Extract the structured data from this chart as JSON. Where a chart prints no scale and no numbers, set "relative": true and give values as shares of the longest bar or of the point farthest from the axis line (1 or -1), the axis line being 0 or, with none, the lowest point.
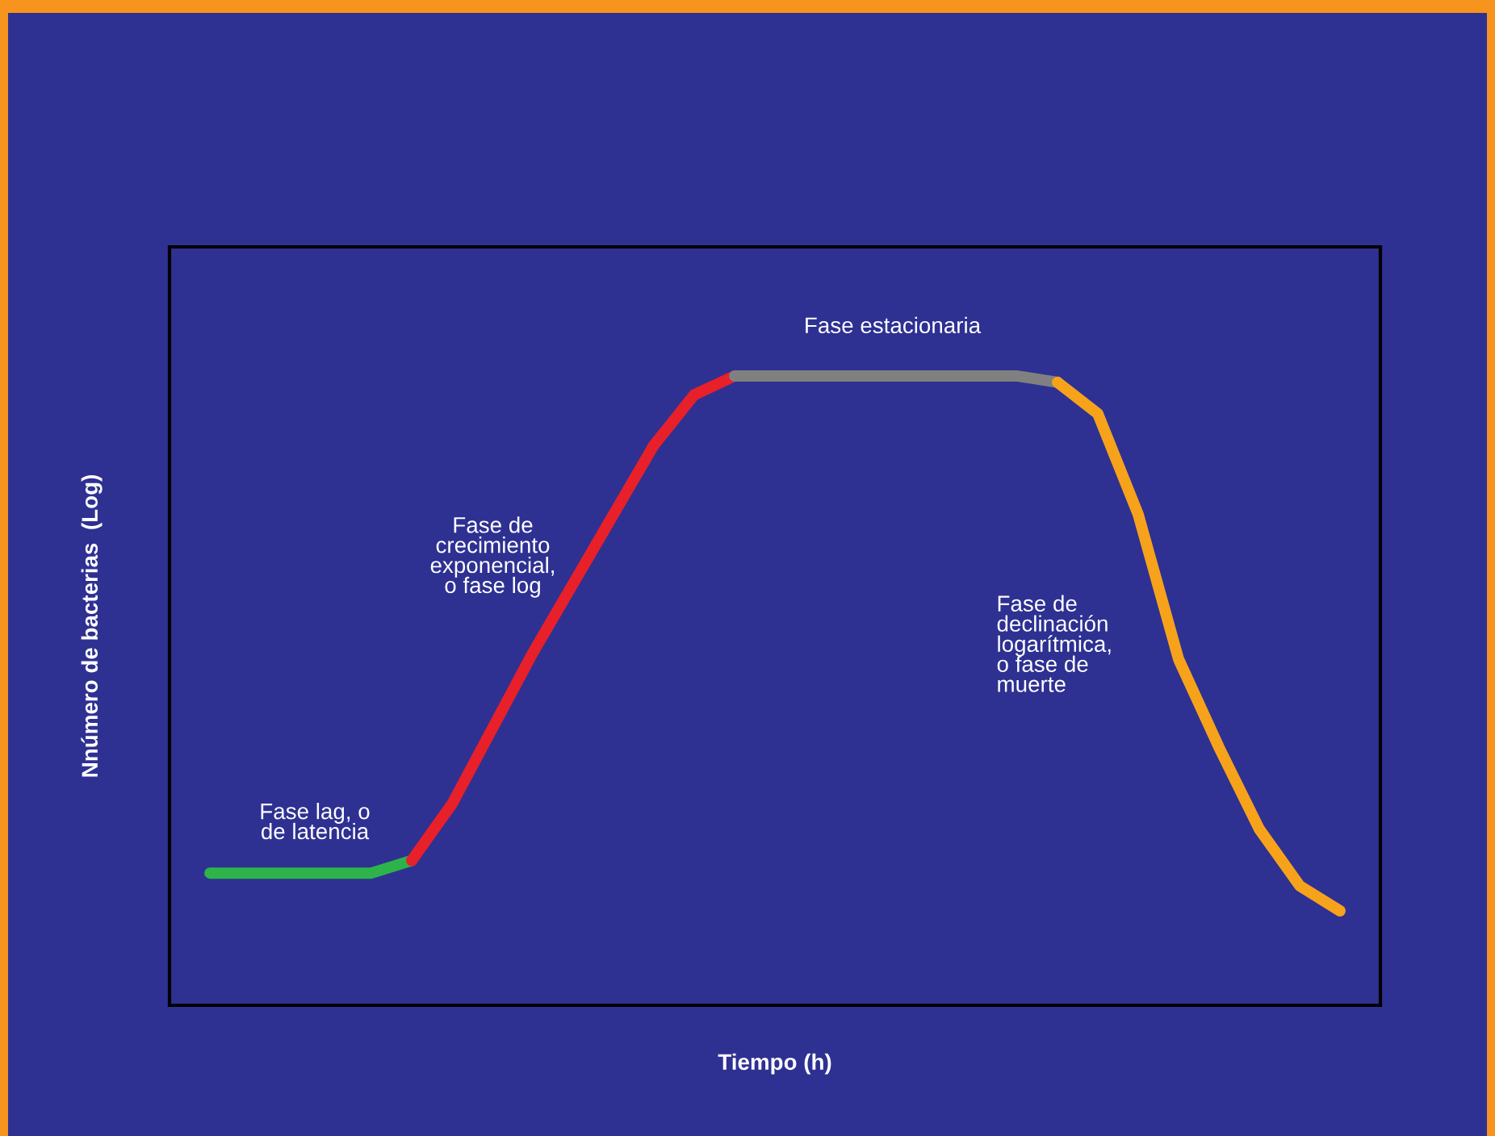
{
  "chart_data": {
    "type": "line",
    "relative": true,
    "xlabel": "Tiempo (h)",
    "ylabel": "Nnúmero de bacterias  (Log)",
    "legend": false,
    "grid": false,
    "marker": "none",
    "line_style": "solid",
    "categories": [
      null,
      null,
      null,
      null,
      null,
      null,
      null,
      null,
      null,
      null,
      null,
      null,
      null,
      null,
      null,
      null,
      null,
      null,
      null,
      null,
      null,
      null,
      null,
      null,
      null,
      null,
      null,
      null,
      null
    ],
    "annotations": [
      "Fase lag, o\nde latencia",
      "Fase de\ncrecimiento\nexponencial,\no fase log",
      "Fase estacionaria",
      "Fase de\ndeclinación\nlogarítmica,\no fase de\nmuerte"
    ],
    "series": [
      {
        "color": "#2db34a",
        "values": [
          0.21,
          0.21,
          0.21,
          0.21,
          0.21,
          0.23,
          null,
          null,
          null,
          null,
          null,
          null,
          null,
          null,
          null,
          null,
          null,
          null,
          null,
          null,
          null,
          null,
          null,
          null,
          null,
          null,
          null,
          null,
          null
        ]
      },
      {
        "color": "#e8202a",
        "values": [
          null,
          null,
          null,
          null,
          null,
          0.23,
          0.32,
          0.44,
          0.56,
          0.67,
          0.78,
          0.89,
          0.97,
          1.0,
          null,
          null,
          null,
          null,
          null,
          null,
          null,
          null,
          null,
          null,
          null,
          null,
          null,
          null,
          null
        ]
      },
      {
        "color": "#808080",
        "values": [
          null,
          null,
          null,
          null,
          null,
          null,
          null,
          null,
          null,
          null,
          null,
          null,
          null,
          1.0,
          1.0,
          1.0,
          1.0,
          1.0,
          1.0,
          1.0,
          1.0,
          0.99,
          null,
          null,
          null,
          null,
          null,
          null,
          null
        ]
      },
      {
        "color": "#f7a21b",
        "values": [
          null,
          null,
          null,
          null,
          null,
          null,
          null,
          null,
          null,
          null,
          null,
          null,
          null,
          null,
          null,
          null,
          null,
          null,
          null,
          null,
          null,
          0.99,
          0.94,
          0.78,
          0.55,
          0.41,
          0.28,
          0.19,
          0.15
        ]
      }
    ]
  }
}
